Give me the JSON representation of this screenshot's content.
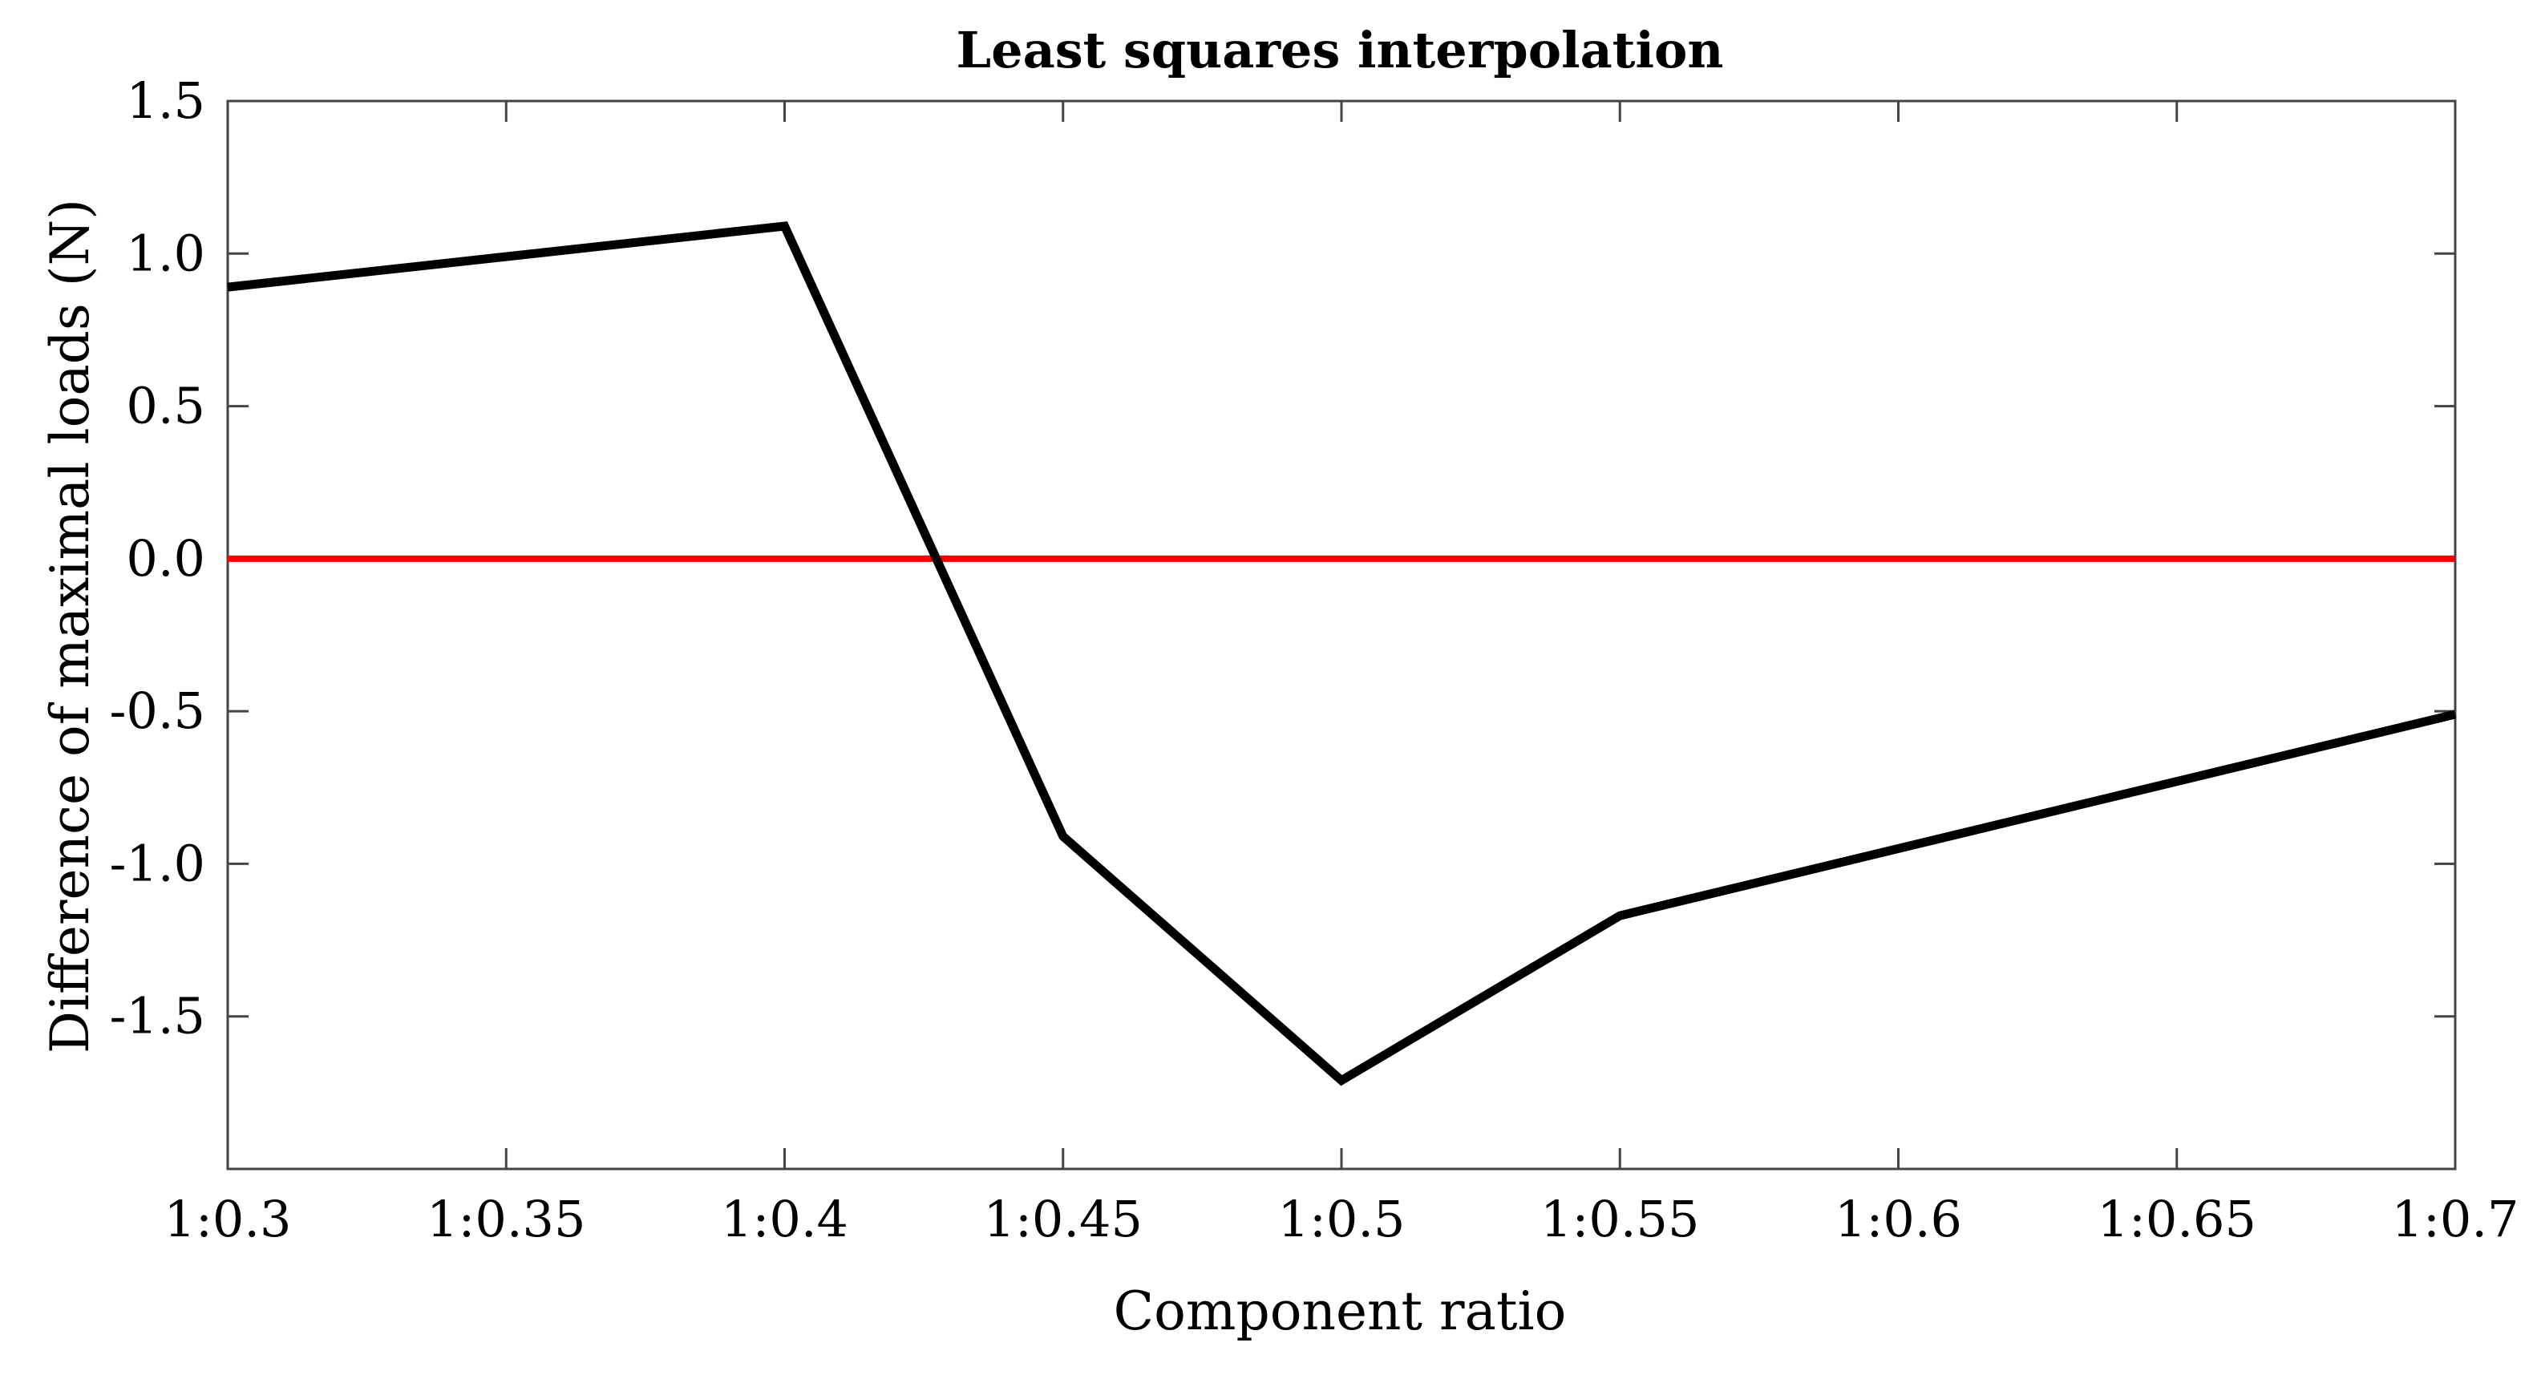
{
  "chart_data": {
    "type": "line",
    "title": "Least squares interpolation",
    "xlabel": "Component ratio",
    "ylabel": "Difference of maximal loads (N)",
    "x_ticks": [
      {
        "value": 0.3,
        "label": "1:0.3"
      },
      {
        "value": 0.35,
        "label": "1:0.35"
      },
      {
        "value": 0.4,
        "label": "1:0.4"
      },
      {
        "value": 0.45,
        "label": "1:0.45"
      },
      {
        "value": 0.5,
        "label": "1:0.5"
      },
      {
        "value": 0.55,
        "label": "1:0.55"
      },
      {
        "value": 0.6,
        "label": "1:0.6"
      },
      {
        "value": 0.65,
        "label": "1:0.65"
      },
      {
        "value": 0.7,
        "label": "1:0.7"
      }
    ],
    "y_ticks": [
      {
        "value": 1.5,
        "label": "1.5"
      },
      {
        "value": 1.0,
        "label": "1.0"
      },
      {
        "value": 0.5,
        "label": "0.5"
      },
      {
        "value": 0.0,
        "label": "0.0"
      },
      {
        "value": -0.5,
        "label": "-0.5"
      },
      {
        "value": -1.0,
        "label": "-1.0"
      },
      {
        "value": -1.5,
        "label": "-1.5"
      }
    ],
    "xlim": [
      0.3,
      0.7
    ],
    "ylim": [
      -2.0,
      1.5
    ],
    "grid": false,
    "series": [
      {
        "color": "#000000",
        "x": [
          0.3,
          0.4,
          0.45,
          0.5,
          0.55,
          0.7
        ],
        "y": [
          0.89,
          1.09,
          -0.91,
          -1.71,
          -1.17,
          -0.51
        ]
      }
    ],
    "reference_lines": [
      {
        "y": 0.0,
        "color": "#ff0000"
      }
    ]
  }
}
